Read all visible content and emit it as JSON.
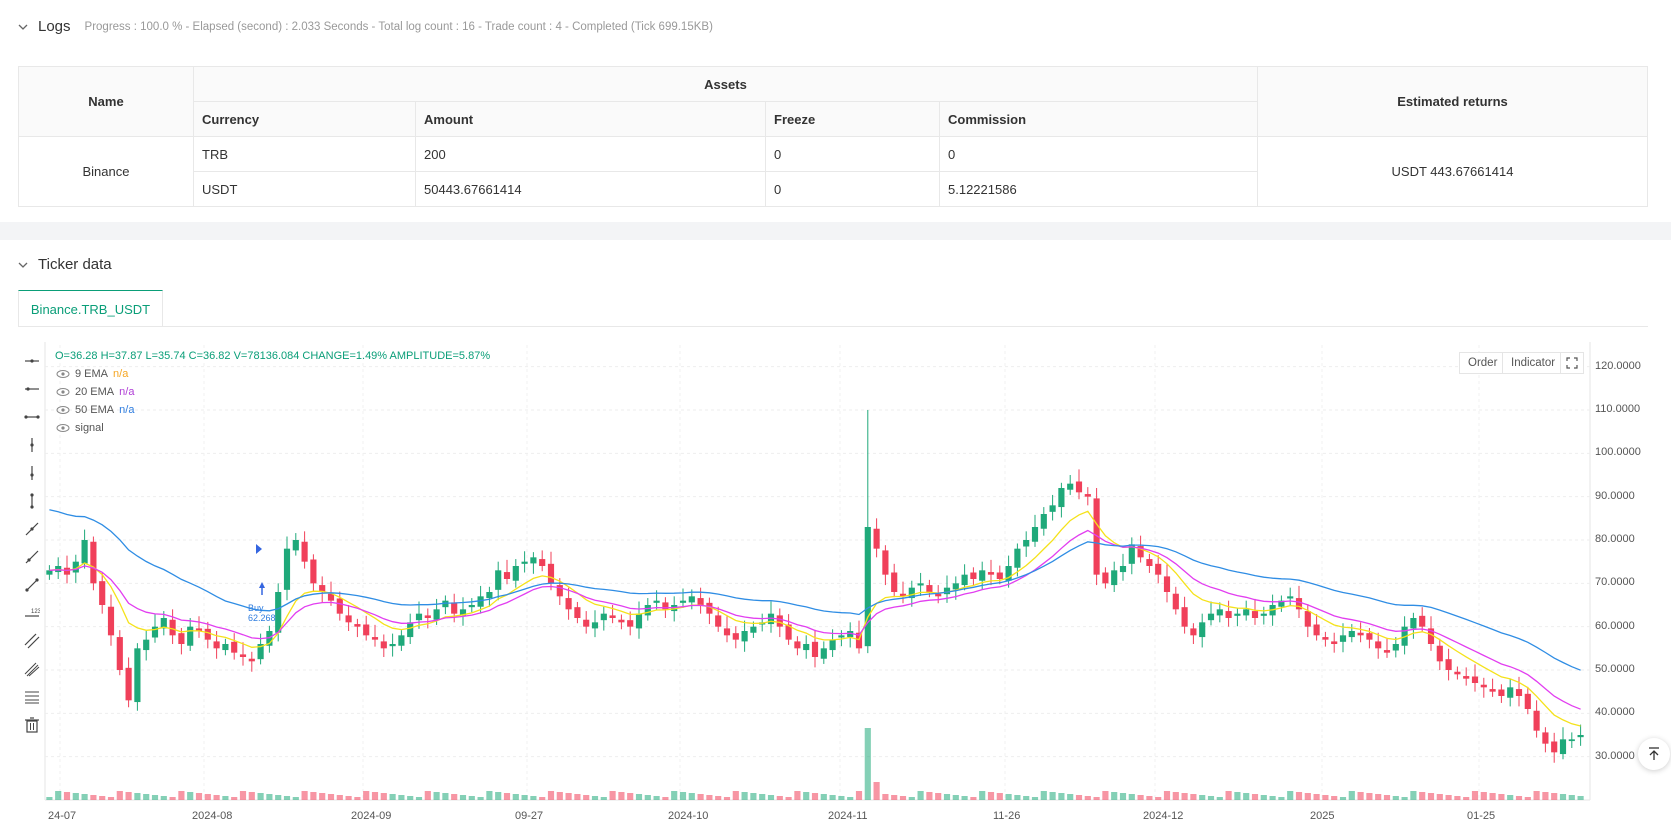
{
  "logs": {
    "title": "Logs",
    "status": "Progress : 100.0 % - Elapsed (second) : 2.033  Seconds - Total log count : 16 - Trade count : 4 - Completed (Tick 699.15KB)"
  },
  "assets_table": {
    "headers": {
      "name": "Name",
      "assets": "Assets",
      "estimated": "Estimated returns",
      "currency": "Currency",
      "amount": "Amount",
      "freeze": "Freeze",
      "commission": "Commission"
    },
    "exchange": "Binance",
    "rows": [
      {
        "currency": "TRB",
        "amount": "200",
        "freeze": "0",
        "commission": "0"
      },
      {
        "currency": "USDT",
        "amount": "50443.67661414",
        "freeze": "0",
        "commission": "5.12221586"
      }
    ],
    "estimated_returns": "USDT 443.67661414"
  },
  "ticker": {
    "title": "Ticker data",
    "tab_label": "Binance.TRB_USDT",
    "ohlc": "O=36.28 H=37.87 L=35.74 C=36.82 V=78136.084 CHANGE=1.49% AMPLITUDE=5.87%",
    "legend": [
      {
        "label": "9 EMA",
        "value": "n/a",
        "color": "#f5a623"
      },
      {
        "label": "20 EMA",
        "value": "n/a",
        "color": "#b03fd6"
      },
      {
        "label": "50 EMA",
        "value": "n/a",
        "color": "#2f7ddf"
      },
      {
        "label": "signal",
        "value": "",
        "color": "#999999"
      }
    ],
    "buttons": {
      "order": "Order",
      "indicator": "Indicator"
    },
    "signal_label": "Buy",
    "signal_price": "62.268"
  },
  "chart_data": {
    "type": "candlestick",
    "y_ticks": [
      "120.0000",
      "110.0000",
      "100.0000",
      "90.0000",
      "80.0000",
      "70.0000",
      "60.0000",
      "50.0000",
      "40.0000",
      "30.0000"
    ],
    "ylim": [
      20,
      125
    ],
    "x_ticks": [
      "24-07",
      "2024-08",
      "2024-09",
      "09-27",
      "2024-10",
      "2024-11",
      "11-26",
      "2024-12",
      "2025",
      "01-25"
    ],
    "close_series": [
      73,
      74,
      72,
      75,
      80,
      70,
      65,
      58,
      50,
      43,
      55,
      57,
      60,
      62,
      58,
      56,
      60,
      59,
      57,
      55,
      56,
      54,
      53,
      52,
      56,
      59,
      68,
      78,
      80,
      75,
      70,
      68,
      66,
      63,
      61,
      60,
      58,
      57,
      55,
      56,
      58,
      61,
      63,
      62,
      64,
      66,
      63,
      64,
      65,
      67,
      68,
      73,
      71,
      74,
      75,
      76,
      74,
      70,
      67,
      64,
      62,
      60,
      61,
      63,
      62,
      61,
      60,
      63,
      65,
      66,
      64,
      65,
      66,
      67,
      65,
      63,
      60,
      58,
      57,
      59,
      60,
      61,
      63,
      60,
      57,
      55,
      56,
      53,
      55,
      57,
      58,
      59,
      55,
      83,
      78,
      72,
      68,
      67,
      69,
      70,
      68,
      67,
      69,
      70,
      72,
      71,
      73,
      72,
      71,
      74,
      78,
      80,
      83,
      86,
      88,
      92,
      93,
      91,
      90,
      72,
      70,
      73,
      74,
      79,
      76,
      74,
      72,
      68,
      64,
      60,
      58,
      61,
      63,
      64,
      62,
      63,
      64,
      62,
      63,
      65,
      66,
      67,
      64,
      60,
      58,
      57,
      56,
      58,
      59,
      58,
      57,
      55,
      54,
      56,
      60,
      62,
      60,
      56,
      52,
      50,
      49,
      48,
      47,
      46,
      45,
      44,
      46,
      44,
      41,
      36,
      33,
      31,
      34,
      34,
      35
    ],
    "volume_peak_index": 93,
    "ema9_last": 38,
    "ema20_last": 43,
    "ema50_last": 52
  }
}
